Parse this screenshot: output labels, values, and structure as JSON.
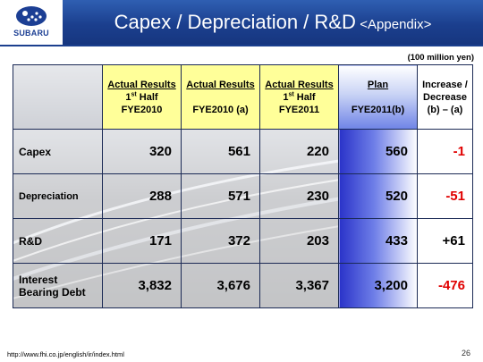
{
  "brand": {
    "name": "SUBARU",
    "color": "#1c3f94"
  },
  "title": {
    "main": "Capex / Depreciation / R&D",
    "sub": "<Appendix>"
  },
  "unit_note": "(100 million yen)",
  "table": {
    "columns": [
      {
        "line1": "Actual Results",
        "sup_prefix": "1",
        "sup": "st",
        "line2_rest": " Half",
        "line3": "FYE2010"
      },
      {
        "line1": "Actual Results",
        "line3": "FYE2010 (a)"
      },
      {
        "line1": "Actual Results",
        "sup_prefix": "1",
        "sup": "st",
        "line2_rest": " Half",
        "line3": "FYE2011"
      },
      {
        "line1": "Plan",
        "line3": "FYE2011(b)"
      },
      {
        "line1": "Increase /",
        "line2": "Decrease",
        "line3": "(b) – (a)"
      }
    ],
    "rows": [
      {
        "label": "Capex",
        "values": [
          "320",
          "561",
          "220",
          "560",
          "-1"
        ]
      },
      {
        "label": "Depreciation",
        "values": [
          "288",
          "571",
          "230",
          "520",
          "-51"
        ]
      },
      {
        "label": "R&D",
        "values": [
          "171",
          "372",
          "203",
          "433",
          "+61"
        ]
      },
      {
        "label_line1": "Interest",
        "label_line2": "Bearing Debt",
        "values": [
          "3,832",
          "3,676",
          "3,367",
          "3,200",
          "-476"
        ]
      }
    ]
  },
  "footer": {
    "url": "http://www.fhi.co.jp/english/ir/index.html",
    "page": "26"
  },
  "colors": {
    "header_blue": "#1b3f8e",
    "highlight_yellow": "#ffff99",
    "negative_red": "#e00000",
    "plan_blue": "#2a33c9"
  }
}
